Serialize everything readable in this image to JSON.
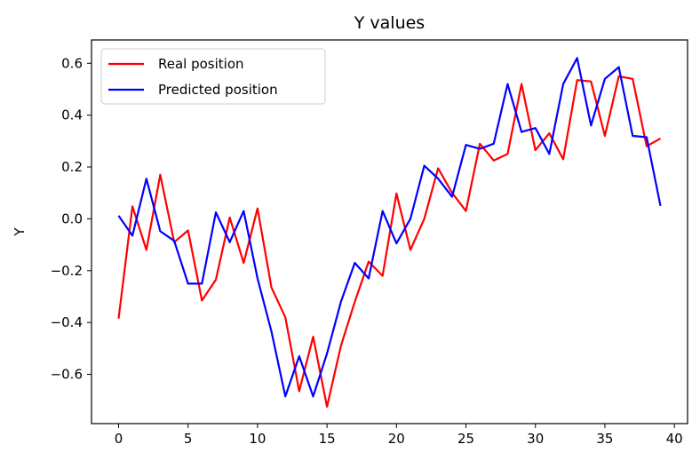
{
  "chart_data": {
    "type": "line",
    "title": "Y values",
    "xlabel": "",
    "ylabel": "Y",
    "xlim": [
      -1.95,
      40.95
    ],
    "ylim": [
      -0.79,
      0.69
    ],
    "xticks": [
      0,
      5,
      10,
      15,
      20,
      25,
      30,
      35,
      40
    ],
    "yticks": [
      -0.6,
      -0.4,
      -0.2,
      0.0,
      0.2,
      0.4,
      0.6
    ],
    "ytick_labels": [
      "−0.6",
      "−0.4",
      "−0.2",
      "0.0",
      "0.2",
      "0.4",
      "0.6"
    ],
    "grid": false,
    "legend_position": "upper-left",
    "x": [
      0,
      1,
      2,
      3,
      4,
      5,
      6,
      7,
      8,
      9,
      10,
      11,
      12,
      13,
      14,
      15,
      16,
      17,
      18,
      19,
      20,
      21,
      22,
      23,
      24,
      25,
      26,
      27,
      28,
      29,
      30,
      31,
      32,
      33,
      34,
      35,
      36,
      37,
      38,
      39
    ],
    "series": [
      {
        "name": "Real position",
        "color": "#ff0000",
        "values": [
          -0.385,
          0.048,
          -0.12,
          0.17,
          -0.09,
          -0.045,
          -0.315,
          -0.235,
          0.005,
          -0.17,
          0.04,
          -0.265,
          -0.38,
          -0.665,
          -0.455,
          -0.725,
          -0.49,
          -0.32,
          -0.165,
          -0.22,
          0.098,
          -0.12,
          0.0,
          0.195,
          0.1,
          0.03,
          0.29,
          0.225,
          0.25,
          0.52,
          0.265,
          0.33,
          0.23,
          0.535,
          0.53,
          0.32,
          0.55,
          0.54,
          0.28,
          0.31
        ]
      },
      {
        "name": "Predicted position",
        "color": "#0000ff",
        "values": [
          0.012,
          -0.065,
          0.155,
          -0.048,
          -0.085,
          -0.25,
          -0.25,
          0.025,
          -0.09,
          0.03,
          -0.23,
          -0.435,
          -0.685,
          -0.53,
          -0.685,
          -0.52,
          -0.32,
          -0.17,
          -0.23,
          0.03,
          -0.095,
          0.0,
          0.205,
          0.155,
          0.085,
          0.285,
          0.27,
          0.29,
          0.52,
          0.335,
          0.35,
          0.25,
          0.52,
          0.62,
          0.36,
          0.54,
          0.585,
          0.32,
          0.315,
          0.05
        ]
      }
    ]
  }
}
